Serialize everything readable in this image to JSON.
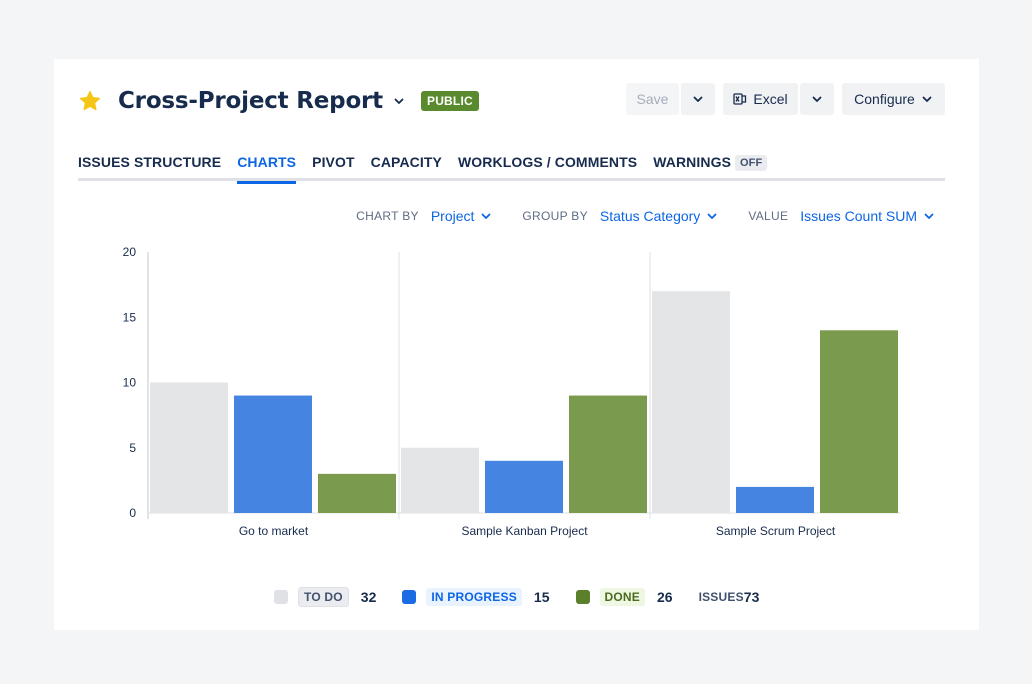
{
  "header": {
    "title": "Cross-Project Report",
    "badge": "PUBLIC",
    "icons": {
      "favorite": "star-icon",
      "title_menu": "chevron-down-icon"
    }
  },
  "toolbar": {
    "save_label": "Save",
    "excel_label": "Excel",
    "configure_label": "Configure",
    "icons": {
      "excel": "excel-icon",
      "dropdown": "chevron-down-icon"
    }
  },
  "tabs": [
    {
      "label": "ISSUES STRUCTURE",
      "active": false
    },
    {
      "label": "CHARTS",
      "active": true
    },
    {
      "label": "PIVOT",
      "active": false
    },
    {
      "label": "CAPACITY",
      "active": false
    },
    {
      "label": "WORKLOGS / COMMENTS",
      "active": false
    },
    {
      "label": "WARNINGS",
      "active": false,
      "badge": "OFF"
    }
  ],
  "controls": {
    "chart_by": {
      "label": "CHART BY",
      "value": "Project"
    },
    "group_by": {
      "label": "GROUP BY",
      "value": "Status Category"
    },
    "value": {
      "label": "VALUE",
      "value": "Issues Count SUM"
    }
  },
  "chart_data": {
    "type": "bar",
    "categories": [
      "Go to market",
      "Sample Kanban Project",
      "Sample Scrum Project"
    ],
    "series": [
      {
        "name": "TO DO",
        "values": [
          10,
          5,
          17
        ],
        "color": "#e4e5e7"
      },
      {
        "name": "IN PROGRESS",
        "values": [
          9,
          4,
          2
        ],
        "color": "#4684e2"
      },
      {
        "name": "DONE",
        "values": [
          3,
          9,
          14
        ],
        "color": "#7a9a4e"
      }
    ],
    "y_ticks": [
      "0",
      "5",
      "10",
      "15",
      "20"
    ],
    "ylim": [
      0,
      20
    ],
    "grid": false,
    "legend_placement": "bottom"
  },
  "legend": {
    "items": [
      {
        "label": "TO DO",
        "count": "32",
        "color": "#dfe1e6"
      },
      {
        "label": "IN PROGRESS",
        "count": "15",
        "color": "#1d6ae5"
      },
      {
        "label": "DONE",
        "count": "26",
        "color": "#5b7f2b"
      }
    ],
    "issues_label": "ISSUES",
    "issues_total": "73"
  }
}
